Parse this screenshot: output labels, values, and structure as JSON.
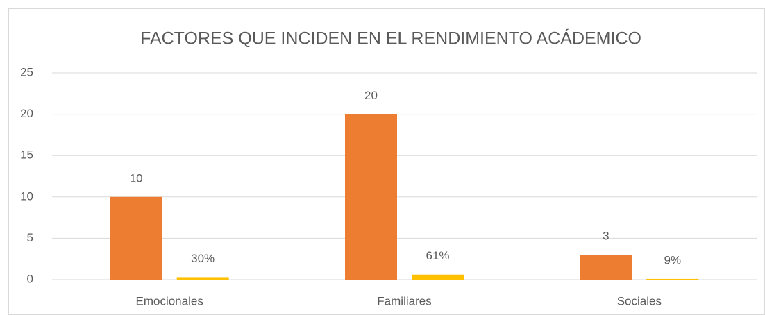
{
  "chart_data": {
    "type": "bar",
    "title": "FACTORES QUE INCIDEN EN EL RENDIMIENTO ACÁDEMICO",
    "categories": [
      "Emocionales",
      "Familiares",
      "Sociales"
    ],
    "series": [
      {
        "color": "#ed7d31",
        "values": [
          10,
          20,
          3
        ]
      },
      {
        "color": "#ffc000",
        "values": [
          0.3,
          0.61,
          0.09
        ],
        "value_labels": [
          "30%",
          "61%",
          "9%"
        ]
      }
    ],
    "ylim": [
      0,
      25
    ],
    "yticks": [
      0,
      5,
      10,
      15,
      20,
      25
    ],
    "grid": true
  }
}
